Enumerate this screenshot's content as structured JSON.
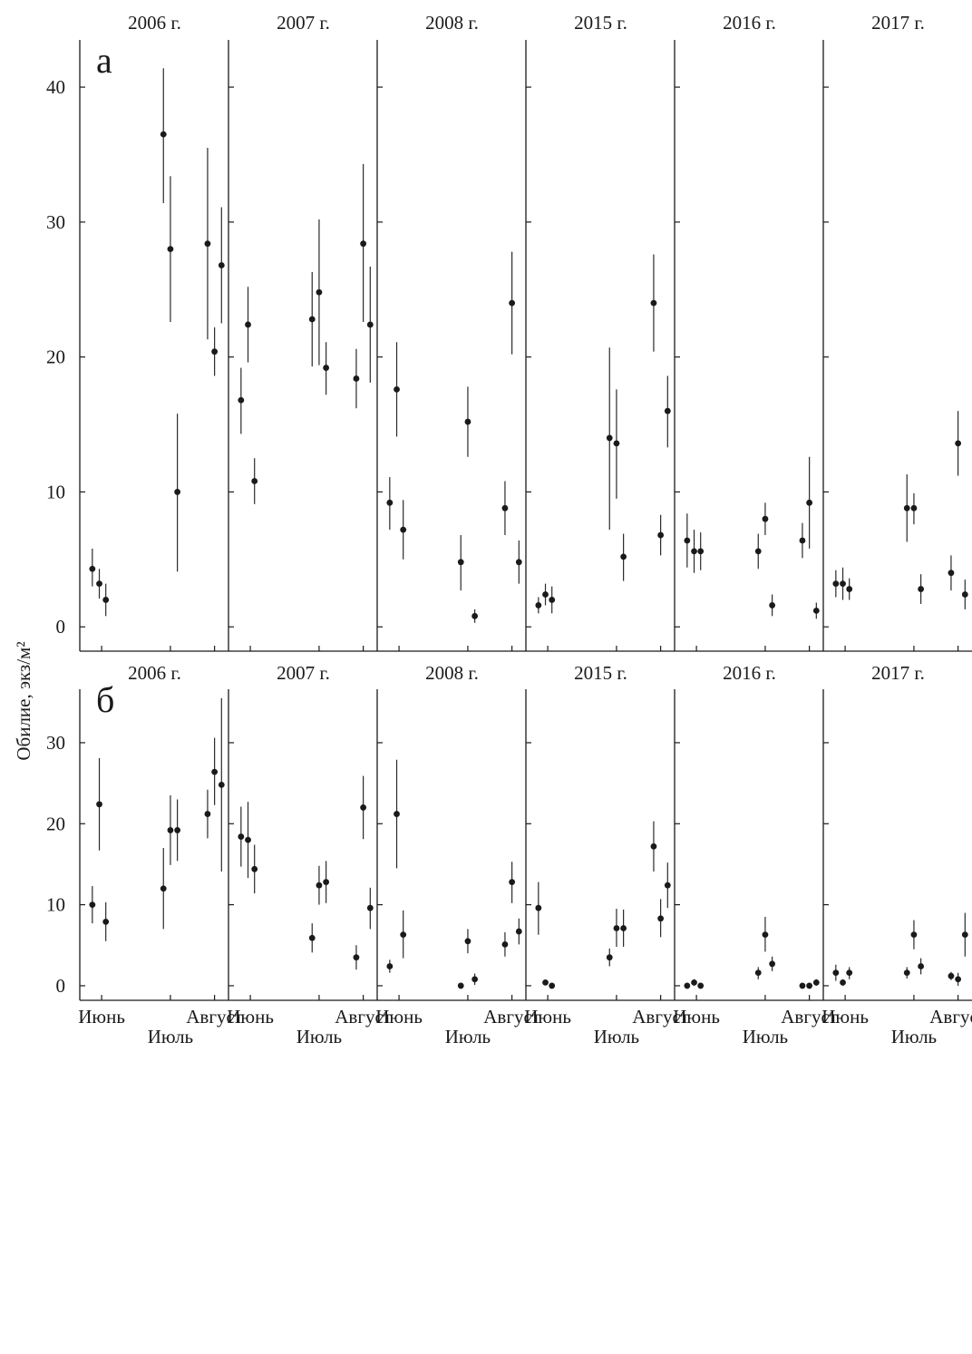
{
  "ylabel": "Обилие, экз/м²",
  "x_ticks": [
    "Июнь",
    "Июль",
    "Август"
  ],
  "chart_data": [
    {
      "type": "scatter",
      "panel_label": "а",
      "ylim": [
        -1.8,
        43.5
      ],
      "yticks": [
        0,
        10,
        20,
        30,
        40
      ],
      "facets": [
        {
          "title": "2006 г.",
          "points": [
            {
              "x": 0.27,
              "y": 4.3,
              "lo": 3.0,
              "hi": 5.8
            },
            {
              "x": 0.42,
              "y": 3.2,
              "lo": 2.1,
              "hi": 4.3
            },
            {
              "x": 0.56,
              "y": 2.0,
              "lo": 0.8,
              "hi": 3.2
            },
            {
              "x": 1.8,
              "y": 36.5,
              "lo": 31.4,
              "hi": 41.4
            },
            {
              "x": 1.95,
              "y": 28.0,
              "lo": 22.6,
              "hi": 33.4
            },
            {
              "x": 2.1,
              "y": 10.0,
              "lo": 4.1,
              "hi": 15.8
            },
            {
              "x": 2.75,
              "y": 28.4,
              "lo": 21.3,
              "hi": 35.5
            },
            {
              "x": 2.9,
              "y": 20.4,
              "lo": 18.6,
              "hi": 22.2
            },
            {
              "x": 3.05,
              "y": 26.8,
              "lo": 22.5,
              "hi": 31.1
            }
          ]
        },
        {
          "title": "2007 г.",
          "points": [
            {
              "x": 0.27,
              "y": 16.8,
              "lo": 14.3,
              "hi": 19.2
            },
            {
              "x": 0.42,
              "y": 22.4,
              "lo": 19.6,
              "hi": 25.2
            },
            {
              "x": 0.56,
              "y": 10.8,
              "lo": 9.1,
              "hi": 12.5
            },
            {
              "x": 1.8,
              "y": 22.8,
              "lo": 19.3,
              "hi": 26.3
            },
            {
              "x": 1.95,
              "y": 24.8,
              "lo": 19.4,
              "hi": 30.2
            },
            {
              "x": 2.1,
              "y": 19.2,
              "lo": 17.2,
              "hi": 21.1
            },
            {
              "x": 2.75,
              "y": 18.4,
              "lo": 16.2,
              "hi": 20.6
            },
            {
              "x": 2.9,
              "y": 28.4,
              "lo": 22.6,
              "hi": 34.3
            },
            {
              "x": 3.05,
              "y": 22.4,
              "lo": 18.1,
              "hi": 26.7
            }
          ]
        },
        {
          "title": "2008 г.",
          "points": [
            {
              "x": 0.27,
              "y": 9.2,
              "lo": 7.2,
              "hi": 11.1
            },
            {
              "x": 0.42,
              "y": 17.6,
              "lo": 14.1,
              "hi": 21.1
            },
            {
              "x": 0.56,
              "y": 7.2,
              "lo": 5.0,
              "hi": 9.4
            },
            {
              "x": 1.8,
              "y": 4.8,
              "lo": 2.7,
              "hi": 6.8
            },
            {
              "x": 1.95,
              "y": 15.2,
              "lo": 12.6,
              "hi": 17.8
            },
            {
              "x": 2.1,
              "y": 0.8,
              "lo": 0.3,
              "hi": 1.3
            },
            {
              "x": 2.75,
              "y": 8.8,
              "lo": 6.8,
              "hi": 10.8
            },
            {
              "x": 2.9,
              "y": 24.0,
              "lo": 20.2,
              "hi": 27.8
            },
            {
              "x": 3.05,
              "y": 4.8,
              "lo": 3.2,
              "hi": 6.4
            }
          ]
        },
        {
          "title": "2015 г.",
          "points": [
            {
              "x": 0.27,
              "y": 1.6,
              "lo": 1.0,
              "hi": 2.2
            },
            {
              "x": 0.42,
              "y": 2.4,
              "lo": 1.6,
              "hi": 3.2
            },
            {
              "x": 0.56,
              "y": 2.0,
              "lo": 1.0,
              "hi": 3.0
            },
            {
              "x": 1.8,
              "y": 14.0,
              "lo": 7.2,
              "hi": 20.7
            },
            {
              "x": 1.95,
              "y": 13.6,
              "lo": 9.5,
              "hi": 17.6
            },
            {
              "x": 2.1,
              "y": 5.2,
              "lo": 3.4,
              "hi": 6.9
            },
            {
              "x": 2.75,
              "y": 24.0,
              "lo": 20.4,
              "hi": 27.6
            },
            {
              "x": 2.9,
              "y": 6.8,
              "lo": 5.3,
              "hi": 8.3
            },
            {
              "x": 3.05,
              "y": 16.0,
              "lo": 13.3,
              "hi": 18.6
            }
          ]
        },
        {
          "title": "2016 г.",
          "points": [
            {
              "x": 0.27,
              "y": 6.4,
              "lo": 4.4,
              "hi": 8.4
            },
            {
              "x": 0.42,
              "y": 5.6,
              "lo": 4.0,
              "hi": 7.2
            },
            {
              "x": 0.56,
              "y": 5.6,
              "lo": 4.2,
              "hi": 7.0
            },
            {
              "x": 1.8,
              "y": 5.6,
              "lo": 4.3,
              "hi": 6.9
            },
            {
              "x": 1.95,
              "y": 8.0,
              "lo": 6.8,
              "hi": 9.2
            },
            {
              "x": 2.1,
              "y": 1.6,
              "lo": 0.8,
              "hi": 2.4
            },
            {
              "x": 2.75,
              "y": 6.4,
              "lo": 5.1,
              "hi": 7.7
            },
            {
              "x": 2.9,
              "y": 9.2,
              "lo": 5.8,
              "hi": 12.6
            },
            {
              "x": 3.05,
              "y": 1.2,
              "lo": 0.6,
              "hi": 1.8
            }
          ]
        },
        {
          "title": "2017 г.",
          "points": [
            {
              "x": 0.27,
              "y": 3.2,
              "lo": 2.2,
              "hi": 4.2
            },
            {
              "x": 0.42,
              "y": 3.2,
              "lo": 2.0,
              "hi": 4.4
            },
            {
              "x": 0.56,
              "y": 2.8,
              "lo": 2.0,
              "hi": 3.6
            },
            {
              "x": 1.8,
              "y": 8.8,
              "lo": 6.3,
              "hi": 11.3
            },
            {
              "x": 1.95,
              "y": 8.8,
              "lo": 7.6,
              "hi": 9.9
            },
            {
              "x": 2.1,
              "y": 2.8,
              "lo": 1.7,
              "hi": 3.9
            },
            {
              "x": 2.75,
              "y": 4.0,
              "lo": 2.7,
              "hi": 5.3
            },
            {
              "x": 2.9,
              "y": 13.6,
              "lo": 11.2,
              "hi": 16.0
            },
            {
              "x": 3.05,
              "y": 2.4,
              "lo": 1.3,
              "hi": 3.5
            }
          ]
        }
      ]
    },
    {
      "type": "scatter",
      "panel_label": "б",
      "ylim": [
        -1.8,
        36.6
      ],
      "yticks": [
        0,
        10,
        20,
        30
      ],
      "facets": [
        {
          "title": "2006 г.",
          "points": [
            {
              "x": 0.27,
              "y": 10.0,
              "lo": 7.7,
              "hi": 12.3
            },
            {
              "x": 0.42,
              "y": 22.4,
              "lo": 16.7,
              "hi": 28.1
            },
            {
              "x": 0.56,
              "y": 7.9,
              "lo": 5.5,
              "hi": 10.3
            },
            {
              "x": 1.8,
              "y": 12.0,
              "lo": 7.0,
              "hi": 17.0
            },
            {
              "x": 1.95,
              "y": 19.2,
              "lo": 14.9,
              "hi": 23.5
            },
            {
              "x": 2.1,
              "y": 19.2,
              "lo": 15.4,
              "hi": 23.0
            },
            {
              "x": 2.75,
              "y": 21.2,
              "lo": 18.2,
              "hi": 24.2
            },
            {
              "x": 2.9,
              "y": 26.4,
              "lo": 22.3,
              "hi": 30.6
            },
            {
              "x": 3.05,
              "y": 24.8,
              "lo": 14.1,
              "hi": 35.5
            }
          ]
        },
        {
          "title": "2007 г.",
          "points": [
            {
              "x": 0.27,
              "y": 18.4,
              "lo": 14.7,
              "hi": 22.1
            },
            {
              "x": 0.42,
              "y": 18.0,
              "lo": 13.3,
              "hi": 22.7
            },
            {
              "x": 0.56,
              "y": 14.4,
              "lo": 11.4,
              "hi": 17.4
            },
            {
              "x": 1.8,
              "y": 5.9,
              "lo": 4.1,
              "hi": 7.7
            },
            {
              "x": 1.95,
              "y": 12.4,
              "lo": 10.0,
              "hi": 14.8
            },
            {
              "x": 2.1,
              "y": 12.8,
              "lo": 10.2,
              "hi": 15.4
            },
            {
              "x": 2.75,
              "y": 3.5,
              "lo": 2.0,
              "hi": 5.0
            },
            {
              "x": 2.9,
              "y": 22.0,
              "lo": 18.1,
              "hi": 25.9
            },
            {
              "x": 3.05,
              "y": 9.6,
              "lo": 7.0,
              "hi": 12.1
            }
          ]
        },
        {
          "title": "2008 г.",
          "points": [
            {
              "x": 0.27,
              "y": 2.4,
              "lo": 1.6,
              "hi": 3.2
            },
            {
              "x": 0.42,
              "y": 21.2,
              "lo": 14.5,
              "hi": 27.9
            },
            {
              "x": 0.56,
              "y": 6.3,
              "lo": 3.4,
              "hi": 9.3
            },
            {
              "x": 1.8,
              "y": 0.0,
              "lo": 0.0,
              "hi": 0.0
            },
            {
              "x": 1.95,
              "y": 5.5,
              "lo": 4.0,
              "hi": 7.0
            },
            {
              "x": 2.1,
              "y": 0.8,
              "lo": 0.1,
              "hi": 1.5
            },
            {
              "x": 2.75,
              "y": 5.1,
              "lo": 3.6,
              "hi": 6.6
            },
            {
              "x": 2.9,
              "y": 12.8,
              "lo": 10.2,
              "hi": 15.3
            },
            {
              "x": 3.05,
              "y": 6.7,
              "lo": 5.1,
              "hi": 8.3
            }
          ]
        },
        {
          "title": "2015 г.",
          "points": [
            {
              "x": 0.27,
              "y": 9.6,
              "lo": 6.3,
              "hi": 12.8
            },
            {
              "x": 0.42,
              "y": 0.4,
              "lo": 0.1,
              "hi": 0.7
            },
            {
              "x": 0.56,
              "y": 0.0,
              "lo": 0.0,
              "hi": 0.0
            },
            {
              "x": 1.8,
              "y": 3.5,
              "lo": 2.4,
              "hi": 4.6
            },
            {
              "x": 1.95,
              "y": 7.1,
              "lo": 4.8,
              "hi": 9.5
            },
            {
              "x": 2.1,
              "y": 7.1,
              "lo": 4.8,
              "hi": 9.4
            },
            {
              "x": 2.75,
              "y": 17.2,
              "lo": 14.1,
              "hi": 20.3
            },
            {
              "x": 2.9,
              "y": 8.3,
              "lo": 6.0,
              "hi": 10.7
            },
            {
              "x": 3.05,
              "y": 12.4,
              "lo": 9.6,
              "hi": 15.2
            }
          ]
        },
        {
          "title": "2016 г.",
          "points": [
            {
              "x": 0.27,
              "y": 0.0,
              "lo": 0.0,
              "hi": 0.0
            },
            {
              "x": 0.42,
              "y": 0.4,
              "lo": 0.0,
              "hi": 0.8
            },
            {
              "x": 0.56,
              "y": 0.0,
              "lo": 0.0,
              "hi": 0.0
            },
            {
              "x": 1.8,
              "y": 1.6,
              "lo": 0.8,
              "hi": 2.3
            },
            {
              "x": 1.95,
              "y": 6.3,
              "lo": 4.2,
              "hi": 8.5
            },
            {
              "x": 2.1,
              "y": 2.7,
              "lo": 1.8,
              "hi": 3.6
            },
            {
              "x": 2.75,
              "y": 0.0,
              "lo": 0.0,
              "hi": 0.0
            },
            {
              "x": 2.9,
              "y": 0.0,
              "lo": 0.0,
              "hi": 0.0
            },
            {
              "x": 3.05,
              "y": 0.4,
              "lo": 0.0,
              "hi": 0.8
            }
          ]
        },
        {
          "title": "2017 г.",
          "points": [
            {
              "x": 0.27,
              "y": 1.6,
              "lo": 0.6,
              "hi": 2.6
            },
            {
              "x": 0.42,
              "y": 0.4,
              "lo": 0.0,
              "hi": 0.8
            },
            {
              "x": 0.56,
              "y": 1.6,
              "lo": 0.8,
              "hi": 2.3
            },
            {
              "x": 1.8,
              "y": 1.6,
              "lo": 0.9,
              "hi": 2.3
            },
            {
              "x": 1.95,
              "y": 6.3,
              "lo": 4.5,
              "hi": 8.1
            },
            {
              "x": 2.1,
              "y": 2.4,
              "lo": 1.4,
              "hi": 3.4
            },
            {
              "x": 2.75,
              "y": 1.2,
              "lo": 0.7,
              "hi": 1.7
            },
            {
              "x": 2.9,
              "y": 0.8,
              "lo": 0.0,
              "hi": 1.6
            },
            {
              "x": 3.05,
              "y": 6.3,
              "lo": 3.6,
              "hi": 9.0
            }
          ]
        }
      ]
    }
  ]
}
